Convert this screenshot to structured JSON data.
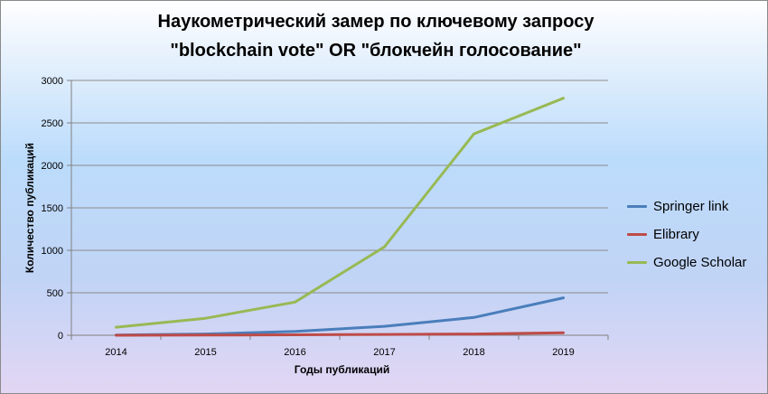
{
  "chart_data": {
    "type": "line",
    "title": [
      "Наукометрический замер по ключевому запросу",
      "\"blockchain vote\" OR \"блокчейн голосование\""
    ],
    "xlabel": "Годы публикаций",
    "ylabel": "Количество публикаций",
    "categories": [
      "2014",
      "2015",
      "2016",
      "2017",
      "2018",
      "2019"
    ],
    "ylim": [
      0,
      3000
    ],
    "yticks": [
      0,
      500,
      1000,
      1500,
      2000,
      2500,
      3000
    ],
    "grid": true,
    "legend_position": "right",
    "series": [
      {
        "name": "Springer link",
        "color": "#4a7ebb",
        "values": [
          2,
          15,
          45,
          105,
          210,
          440
        ]
      },
      {
        "name": "Elibrary",
        "color": "#be4b48",
        "values": [
          0,
          2,
          5,
          10,
          15,
          30
        ]
      },
      {
        "name": "Google Scholar",
        "color": "#98b954",
        "values": [
          95,
          200,
          390,
          1040,
          2370,
          2790
        ]
      }
    ]
  }
}
